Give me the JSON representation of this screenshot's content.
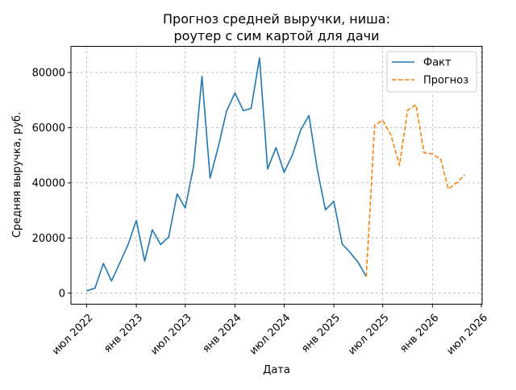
{
  "chart_data": {
    "type": "line",
    "title_line1": "Прогноз средней выручки, ниша:",
    "title_line2": "роутер с сим картой для дачи",
    "xlabel": "Дата",
    "ylabel": "Средняя выручка, руб.",
    "xlim": [
      "2022-05-04",
      "2026-07-04"
    ],
    "ylim": [
      -4000,
      89500
    ],
    "grid": true,
    "legend_position": "top-right",
    "x_ticks": [
      {
        "date": "2022-07-01",
        "label": "июл 2022"
      },
      {
        "date": "2023-01-01",
        "label": "янв 2023"
      },
      {
        "date": "2023-07-01",
        "label": "июл 2023"
      },
      {
        "date": "2024-01-01",
        "label": "янв 2024"
      },
      {
        "date": "2024-07-01",
        "label": "июл 2024"
      },
      {
        "date": "2025-01-01",
        "label": "янв 2025"
      },
      {
        "date": "2025-07-01",
        "label": "июл 2025"
      },
      {
        "date": "2026-01-01",
        "label": "янв 2026"
      },
      {
        "date": "2026-07-01",
        "label": "июл 2026"
      }
    ],
    "y_ticks": [
      {
        "value": 0,
        "label": "0"
      },
      {
        "value": 20000,
        "label": "20000"
      },
      {
        "value": 40000,
        "label": "40000"
      },
      {
        "value": 60000,
        "label": "60000"
      },
      {
        "value": 80000,
        "label": "80000"
      }
    ],
    "series": [
      {
        "name": "Факт",
        "color": "#1f77b4",
        "style": "solid",
        "x": [
          "2022-07-01",
          "2022-08-01",
          "2022-09-01",
          "2022-10-01",
          "2022-11-01",
          "2022-12-01",
          "2023-01-01",
          "2023-02-01",
          "2023-03-01",
          "2023-04-01",
          "2023-05-01",
          "2023-06-01",
          "2023-07-01",
          "2023-08-01",
          "2023-09-01",
          "2023-10-01",
          "2023-11-01",
          "2023-12-01",
          "2024-01-01",
          "2024-02-01",
          "2024-03-01",
          "2024-04-01",
          "2024-05-01",
          "2024-06-01",
          "2024-07-01",
          "2024-08-01",
          "2024-09-01",
          "2024-10-01",
          "2024-11-01",
          "2024-12-01",
          "2025-01-01",
          "2025-02-01",
          "2025-03-01",
          "2025-04-01",
          "2025-05-01"
        ],
        "y": [
          800,
          1800,
          10800,
          4400,
          11000,
          17500,
          26400,
          11600,
          23000,
          17600,
          20400,
          36000,
          30900,
          46000,
          78600,
          41700,
          53300,
          66000,
          72600,
          66200,
          67000,
          85300,
          45000,
          52800,
          43800,
          50200,
          59300,
          64400,
          44800,
          30200,
          33300,
          17800,
          14900,
          11200,
          6000
        ]
      },
      {
        "name": "Прогноз",
        "color": "#ff7f0e",
        "style": "dashed",
        "x": [
          "2025-05-01",
          "2025-06-01",
          "2025-07-01",
          "2025-08-01",
          "2025-09-01",
          "2025-10-01",
          "2025-11-01",
          "2025-12-01",
          "2026-01-01",
          "2026-02-01",
          "2026-03-01",
          "2026-04-01",
          "2026-05-01"
        ],
        "y": [
          6000,
          60800,
          62700,
          57200,
          46300,
          66300,
          68300,
          50900,
          50500,
          48500,
          37800,
          40000,
          43000
        ]
      }
    ]
  }
}
